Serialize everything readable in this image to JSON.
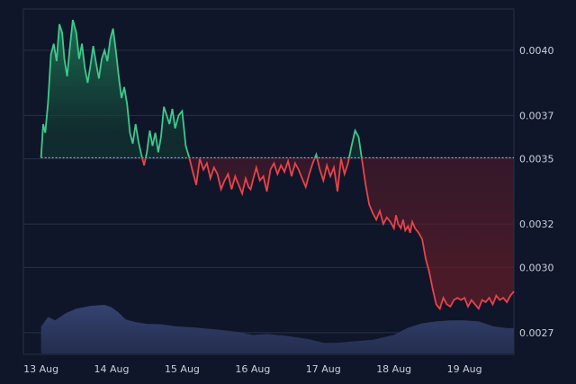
{
  "chart_data": {
    "type": "area",
    "x_labels": [
      "13 Aug",
      "14 Aug",
      "15 Aug",
      "16 Aug",
      "17 Aug",
      "18 Aug",
      "19 Aug"
    ],
    "y_ticks": [
      0.0027,
      0.003,
      0.0032,
      0.0035,
      0.0037,
      0.004
    ],
    "y_tick_labels": [
      "0.0027",
      "0.0030",
      "0.0032",
      "0.0035",
      "0.0037",
      "0.0040"
    ],
    "ylim": [
      0.0026,
      0.00419
    ],
    "baseline": 0.003505,
    "grid": "horizontal",
    "up_color": "#3ec98d",
    "down_color": "#e8434b",
    "volume_color": "#2a3560",
    "series": [
      {
        "x": [
          13.0,
          13.03,
          13.06,
          13.1,
          13.14,
          13.18,
          13.22,
          13.26,
          13.3,
          13.33,
          13.37,
          13.41,
          13.45,
          13.5,
          13.54,
          13.58,
          13.62,
          13.66,
          13.7,
          13.74,
          13.78,
          13.82,
          13.86,
          13.9,
          13.94,
          13.98,
          14.02,
          14.06,
          14.1,
          14.14,
          14.18,
          14.22,
          14.26,
          14.3,
          14.34,
          14.38,
          14.42,
          14.46,
          14.5,
          14.54,
          14.58,
          14.62,
          14.66,
          14.7,
          14.74,
          14.78,
          14.82,
          14.86,
          14.9,
          14.95,
          15.0,
          15.05,
          15.1,
          15.15,
          15.2,
          15.25,
          15.3,
          15.35,
          15.4,
          15.45,
          15.5,
          15.55,
          15.6,
          15.65,
          15.7,
          15.75,
          15.8,
          15.85,
          15.9,
          15.94,
          15.97,
          16.0,
          16.05,
          16.1,
          16.15,
          16.2,
          16.25,
          16.3,
          16.35,
          16.4,
          16.45,
          16.5,
          16.55,
          16.6,
          16.65,
          16.7,
          16.75,
          16.8,
          16.85,
          16.9,
          16.95,
          17.0,
          17.05,
          17.1,
          17.15,
          17.2,
          17.25,
          17.3,
          17.35,
          17.4,
          17.45,
          17.5,
          17.55,
          17.6,
          17.65,
          17.7,
          17.75,
          17.8,
          17.85,
          17.9,
          17.95,
          18.0,
          18.03,
          18.06,
          18.1,
          18.13,
          18.16,
          18.2,
          18.23,
          18.26,
          18.3,
          18.35,
          18.4,
          18.45,
          18.5,
          18.55,
          18.6,
          18.65,
          18.7,
          18.75,
          18.8,
          18.85,
          18.9,
          18.95,
          19.0,
          19.05,
          19.1,
          19.15,
          19.2,
          19.25,
          19.3,
          19.35,
          19.4,
          19.45,
          19.5,
          19.55,
          19.6,
          19.65,
          19.7
        ],
        "y": [
          0.003505,
          0.00366,
          0.00362,
          0.00376,
          0.00398,
          0.00403,
          0.00395,
          0.00412,
          0.00408,
          0.00396,
          0.00388,
          0.00402,
          0.00414,
          0.00408,
          0.00396,
          0.00403,
          0.00392,
          0.00385,
          0.00393,
          0.00402,
          0.00394,
          0.00387,
          0.00396,
          0.004,
          0.00395,
          0.00405,
          0.0041,
          0.004,
          0.00388,
          0.00378,
          0.00383,
          0.00375,
          0.00362,
          0.00357,
          0.00366,
          0.00358,
          0.00352,
          0.00347,
          0.00353,
          0.00363,
          0.00356,
          0.00362,
          0.00353,
          0.0036,
          0.00374,
          0.0037,
          0.00366,
          0.00373,
          0.00364,
          0.0037,
          0.00372,
          0.00356,
          0.003505,
          0.00344,
          0.00338,
          0.0035,
          0.00345,
          0.00348,
          0.00341,
          0.00346,
          0.00343,
          0.00336,
          0.0034,
          0.00343,
          0.00336,
          0.00342,
          0.00338,
          0.00334,
          0.00341,
          0.00337,
          0.00336,
          0.0034,
          0.00346,
          0.0034,
          0.00342,
          0.00335,
          0.00345,
          0.00348,
          0.00343,
          0.00347,
          0.00344,
          0.00349,
          0.00342,
          0.00348,
          0.00345,
          0.00341,
          0.00337,
          0.00343,
          0.00348,
          0.00352,
          0.00345,
          0.0034,
          0.00347,
          0.00342,
          0.00346,
          0.00335,
          0.0035,
          0.00343,
          0.00348,
          0.00356,
          0.00363,
          0.0036,
          0.00349,
          0.00338,
          0.00329,
          0.00325,
          0.00322,
          0.00326,
          0.0032,
          0.00323,
          0.00321,
          0.00318,
          0.00324,
          0.0032,
          0.00318,
          0.00322,
          0.00317,
          0.00319,
          0.00316,
          0.00321,
          0.00318,
          0.00316,
          0.00313,
          0.00304,
          0.00298,
          0.0029,
          0.00283,
          0.00281,
          0.00286,
          0.00283,
          0.00282,
          0.00285,
          0.00286,
          0.00285,
          0.00286,
          0.00282,
          0.00285,
          0.00283,
          0.00281,
          0.00285,
          0.00284,
          0.00286,
          0.00283,
          0.00287,
          0.00285,
          0.00286,
          0.00284,
          0.00287,
          0.00289
        ]
      }
    ],
    "volume": {
      "x": [
        13.0,
        13.1,
        13.2,
        13.35,
        13.5,
        13.7,
        13.9,
        14.0,
        14.1,
        14.2,
        14.35,
        14.5,
        14.7,
        14.9,
        15.2,
        15.5,
        15.8,
        16.0,
        16.2,
        16.5,
        16.8,
        17.0,
        17.2,
        17.5,
        17.7,
        18.0,
        18.2,
        18.4,
        18.6,
        18.8,
        19.0,
        19.2,
        19.4,
        19.6,
        19.7
      ],
      "level": [
        0.55,
        0.75,
        0.68,
        0.83,
        0.92,
        0.98,
        1.0,
        0.95,
        0.84,
        0.7,
        0.64,
        0.61,
        0.6,
        0.56,
        0.53,
        0.49,
        0.44,
        0.38,
        0.4,
        0.36,
        0.29,
        0.22,
        0.22,
        0.26,
        0.28,
        0.38,
        0.53,
        0.62,
        0.66,
        0.68,
        0.68,
        0.66,
        0.56,
        0.52,
        0.52
      ]
    }
  }
}
